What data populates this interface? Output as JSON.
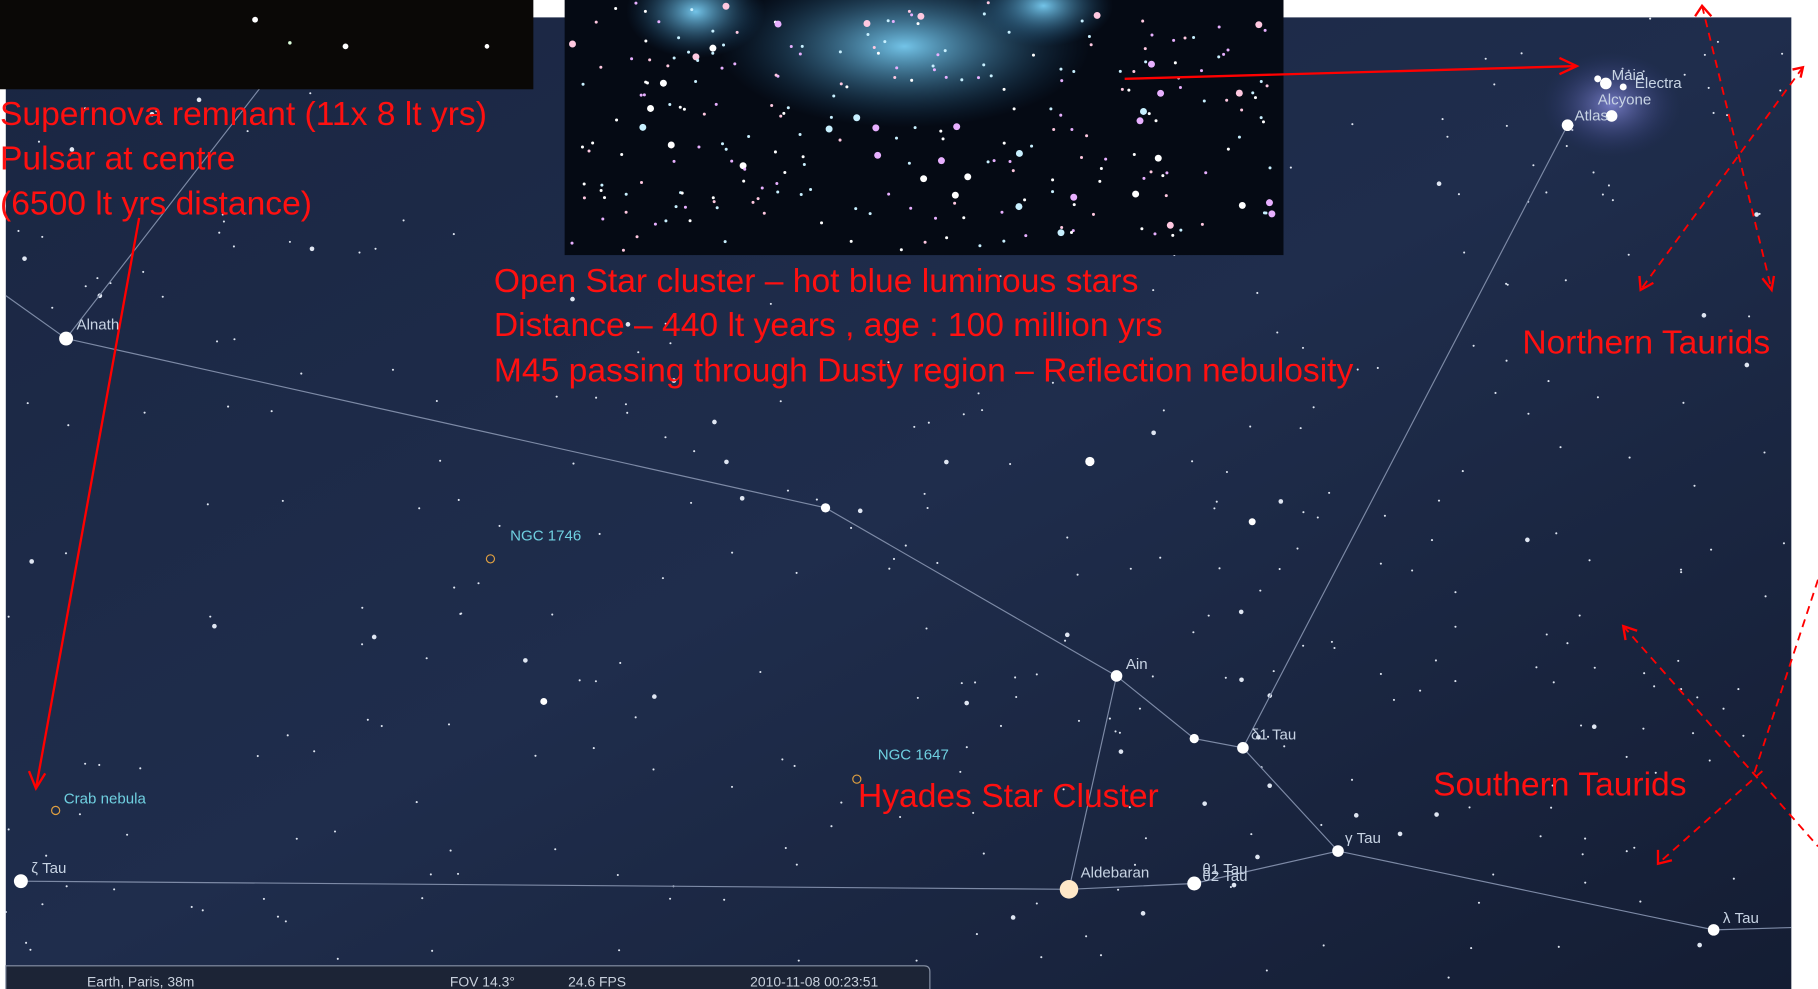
{
  "annotations": {
    "crab": [
      "Supernova remnant (11x 8 lt yrs)",
      "Pulsar at centre",
      "(6500 lt yrs distance)"
    ],
    "pleiades": [
      "Open  Star cluster – hot blue luminous stars",
      "Distance – 440 lt years , age : 100 million yrs",
      "M45 passing through Dusty region – Reflection nebulosity"
    ],
    "northern": "Northern Taurids",
    "southern": "Southern Taurids",
    "hyades": "Hyades Star Cluster"
  },
  "labels": {
    "maia": "Maia",
    "electra": "Electra",
    "alcyone": "Alcyone",
    "atlas": "Atlas",
    "alnath": "Alnath",
    "ngc1746": "NGC 1746",
    "ain": "Ain",
    "delta1": "δ1 Tau",
    "ngc1647": "NGC 1647",
    "crab": "Crab nebula",
    "zeta": "ζ Tau",
    "aldebaran": "Aldebaran",
    "theta1": "θ1 Tau",
    "theta2": "θ2 Tau",
    "gamma": "γ Tau",
    "lambda": "λ Tau"
  },
  "status": {
    "location": "Earth, Paris, 38m",
    "fov": "FOV 14.3°",
    "fps": "24.6 FPS",
    "datetime": "2010-11-08   00:23:51"
  }
}
